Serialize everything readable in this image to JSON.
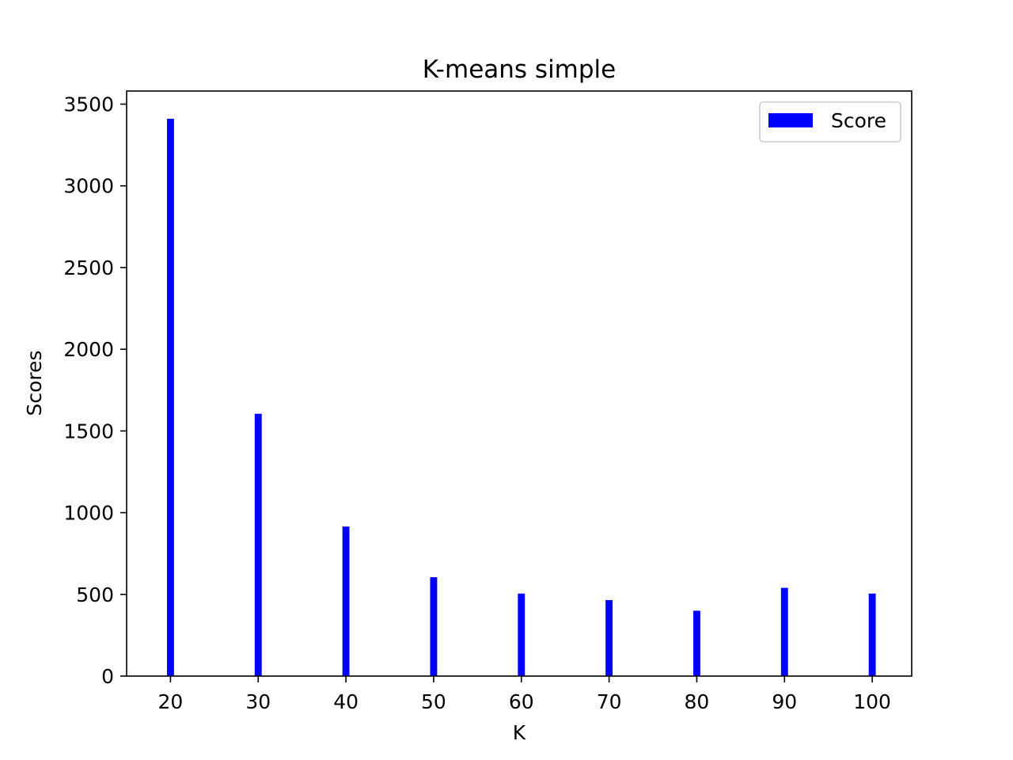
{
  "chart_data": {
    "type": "bar",
    "title": "K-means simple",
    "xlabel": "K",
    "ylabel": "Scores",
    "x": [
      20,
      30,
      40,
      50,
      60,
      70,
      80,
      90,
      100
    ],
    "series": [
      {
        "name": "Score",
        "color": "#0000ff",
        "values": [
          3410,
          1605,
          915,
          605,
          505,
          465,
          400,
          540,
          505
        ]
      }
    ],
    "xticks": [
      "20",
      "30",
      "40",
      "50",
      "60",
      "70",
      "80",
      "90",
      "100"
    ],
    "yticks": [
      "0",
      "500",
      "1000",
      "1500",
      "2000",
      "2500",
      "3000",
      "3500"
    ],
    "ytick_values": [
      0,
      500,
      1000,
      1500,
      2000,
      2500,
      3000,
      3500
    ],
    "xlim": [
      15,
      104.5
    ],
    "ylim": [
      0,
      3580
    ],
    "bar_width": 0.8,
    "legend": {
      "position": "top-right",
      "label": "Score"
    },
    "grid": false
  }
}
